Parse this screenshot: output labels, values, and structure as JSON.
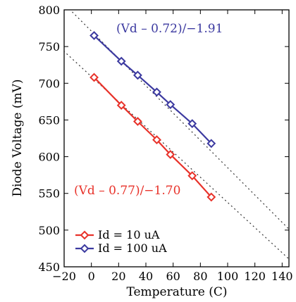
{
  "chart_data": {
    "type": "line",
    "title": "",
    "xlabel": "Temperature (C)",
    "ylabel": "Diode Voltage (mV)",
    "xlim": [
      -20,
      145
    ],
    "ylim": [
      450,
      800
    ],
    "x_ticks": [
      -20,
      0,
      20,
      40,
      60,
      80,
      100,
      120,
      140
    ],
    "y_ticks": [
      450,
      500,
      550,
      600,
      650,
      700,
      750,
      800
    ],
    "x_tick_labels": [
      "−20",
      "0",
      "20",
      "40",
      "60",
      "80",
      "100",
      "120",
      "140"
    ],
    "y_tick_labels": [
      "450",
      "500",
      "550",
      "600",
      "650",
      "700",
      "750",
      "800"
    ],
    "grid": false,
    "legend_position": "bottom-left",
    "series": [
      {
        "name": "Id = 10 uA",
        "color": "#e8322a",
        "marker": "diamond",
        "points": [
          [
            2,
            708
          ],
          [
            22,
            670
          ],
          [
            34,
            648
          ],
          [
            48,
            623
          ],
          [
            58,
            603
          ],
          [
            74,
            574
          ],
          [
            88,
            545
          ]
        ]
      },
      {
        "name": "Id = 100 uA",
        "color": "#3c3aa0",
        "marker": "diamond",
        "points": [
          [
            2,
            765
          ],
          [
            22,
            730
          ],
          [
            34,
            711
          ],
          [
            48,
            688
          ],
          [
            58,
            671
          ],
          [
            74,
            645
          ],
          [
            88,
            618
          ]
        ]
      }
    ],
    "fit_lines": [
      {
        "color": "#333333",
        "style": "dotted",
        "x": [
          -25,
          150
        ],
        "y": [
          817.6,
          491.9
        ]
      },
      {
        "color": "#333333",
        "style": "dotted",
        "x": [
          -25,
          150
        ],
        "y": [
          752.0,
          452.0
        ]
      }
    ],
    "annotations": [
      {
        "text": "(Vd – 0.72)/−1.91",
        "color": "#3c3aa0"
      },
      {
        "text": "(Vd – 0.77)/−1.70",
        "color": "#e8322a"
      }
    ]
  }
}
